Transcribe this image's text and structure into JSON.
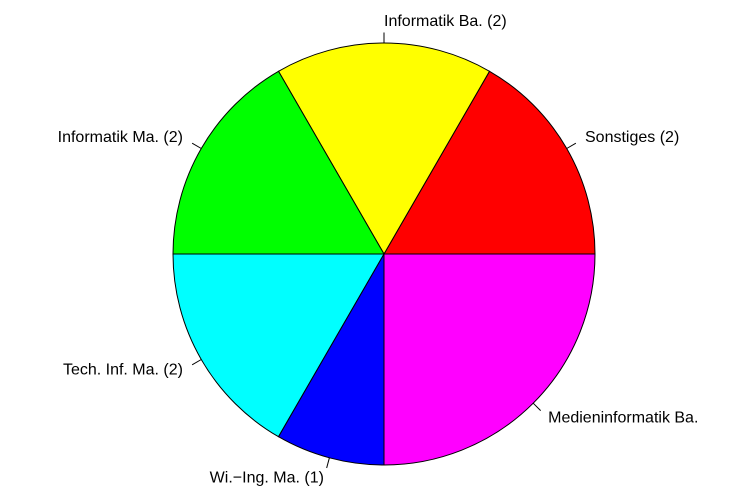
{
  "chart_data": {
    "type": "pie",
    "categories": [
      "Sonstiges (2)",
      "Informatik Ba. (2)",
      "Informatik Ma. (2)",
      "Tech. Inf. Ma. (2)",
      "Wi.−Ing. Ma. (1)",
      "Medieninformatik Ba."
    ],
    "values": [
      2,
      2,
      2,
      2,
      1,
      3
    ],
    "colors": [
      "#ff0000",
      "#ffff00",
      "#00ff00",
      "#00ffff",
      "#0000ff",
      "#ff00ff"
    ]
  }
}
